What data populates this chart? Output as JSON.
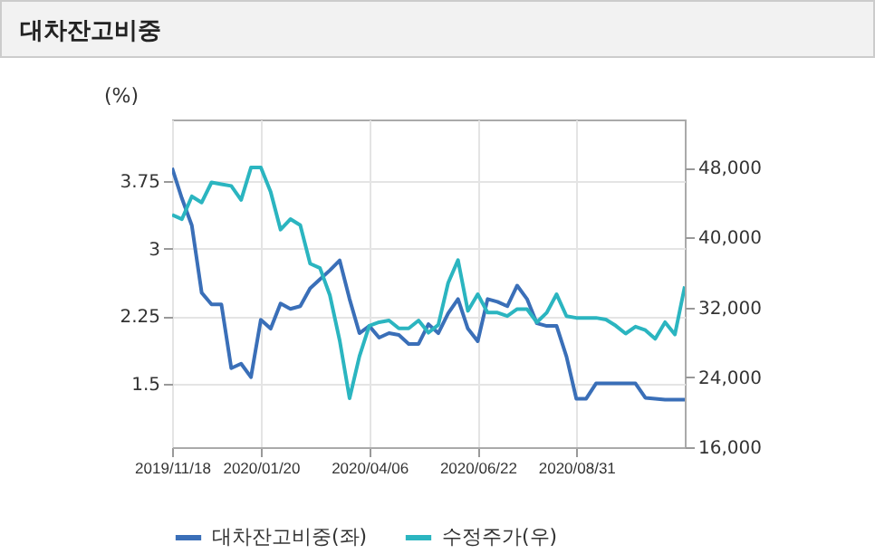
{
  "chart_data": {
    "type": "line",
    "title": "대차잔고비중",
    "ylabel": "(%)",
    "x": [
      "2019-11-18",
      "2019-11-25",
      "2019-12-02",
      "2019-12-09",
      "2019-12-16",
      "2019-12-23",
      "2019-12-30",
      "2020-01-06",
      "2020-01-13",
      "2020-01-20",
      "2020-01-27",
      "2020-02-03",
      "2020-02-10",
      "2020-02-17",
      "2020-02-24",
      "2020-03-02",
      "2020-03-09",
      "2020-03-16",
      "2020-03-23",
      "2020-03-30",
      "2020-04-06",
      "2020-04-13",
      "2020-04-20",
      "2020-04-27",
      "2020-05-04",
      "2020-05-11",
      "2020-05-18",
      "2020-05-25",
      "2020-06-01",
      "2020-06-08",
      "2020-06-15",
      "2020-06-22",
      "2020-06-29",
      "2020-07-06",
      "2020-07-13",
      "2020-07-20",
      "2020-07-27",
      "2020-08-03",
      "2020-08-10",
      "2020-08-17",
      "2020-08-24",
      "2020-08-31",
      "2020-09-07",
      "2020-09-14",
      "2020-09-21",
      "2020-09-28",
      "2020-10-05",
      "2020-10-12",
      "2020-10-19",
      "2020-10-26",
      "2020-11-02",
      "2020-11-09",
      "2020-11-16"
    ],
    "series": [
      {
        "name": "대차잔고비중(좌)",
        "color": "#3a6fb8",
        "axis": "y",
        "values": [
          3.9,
          3.56,
          3.26,
          2.51,
          2.38,
          2.38,
          1.67,
          1.72,
          1.57,
          2.21,
          2.11,
          2.39,
          2.33,
          2.36,
          2.56,
          2.66,
          2.76,
          2.87,
          2.44,
          2.06,
          2.14,
          2.01,
          2.06,
          2.04,
          1.94,
          1.94,
          2.16,
          2.06,
          2.28,
          2.44,
          2.11,
          1.97,
          2.44,
          2.41,
          2.36,
          2.59,
          2.44,
          2.17,
          2.14,
          2.14,
          1.8,
          1.33,
          1.33,
          1.5,
          1.5,
          1.5,
          1.5,
          1.5,
          1.34,
          1.33,
          1.32,
          1.32,
          1.32
        ]
      },
      {
        "name": "수정주가(우)",
        "color": "#2bb5c0",
        "axis": "y2",
        "values": [
          42600,
          42100,
          44700,
          44000,
          46300,
          46100,
          45900,
          44300,
          48000,
          48000,
          45200,
          40900,
          42100,
          41400,
          37000,
          36500,
          33400,
          28200,
          21600,
          26400,
          29900,
          30300,
          30500,
          29600,
          29600,
          30500,
          29100,
          30000,
          34800,
          37400,
          31600,
          33500,
          31400,
          31400,
          31000,
          31800,
          31800,
          30300,
          31400,
          33500,
          31000,
          30800,
          30800,
          30800,
          30600,
          29900,
          29000,
          29800,
          29400,
          28400,
          30300,
          28900,
          34400
        ]
      }
    ],
    "xlim": [
      "2019-11-18",
      "2020-11-16"
    ],
    "xticks": [
      {
        "value": "2019-11-18",
        "label": "2019/11/18"
      },
      {
        "value": "2020-01-20",
        "label": "2020/01/20"
      },
      {
        "value": "2020-04-06",
        "label": "2020/04/06"
      },
      {
        "value": "2020-06-22",
        "label": "2020/06/22"
      },
      {
        "value": "2020-08-31",
        "label": "2020/08/31"
      }
    ],
    "ylim": [
      0.79,
      4.44
    ],
    "yticks": [
      1.5,
      2.25,
      3,
      3.75
    ],
    "y2lim": [
      16000,
      53500
    ],
    "y2ticks": [
      {
        "value": 16000,
        "label": "16,000"
      },
      {
        "value": 24000,
        "label": "24,000"
      },
      {
        "value": 32000,
        "label": "32,000"
      },
      {
        "value": 40000,
        "label": "40,000"
      },
      {
        "value": 48000,
        "label": "48,000"
      }
    ],
    "grid": true,
    "legend": "bottom"
  }
}
